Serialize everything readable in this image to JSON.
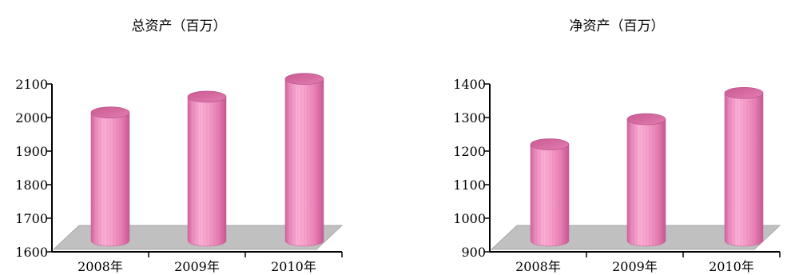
{
  "chart_data": [
    {
      "type": "bar",
      "title": "总资产（百万）",
      "categories": [
        "2008年",
        "2009年",
        "2010年"
      ],
      "values": [
        2015,
        2062,
        2115
      ],
      "ylim": [
        1600,
        2100
      ],
      "yticks": [
        1600,
        1700,
        1800,
        1900,
        2000,
        2100
      ],
      "bar_shape": "cylinder",
      "bar_color": "#f49ac7",
      "floor_color": "#c0c0c0",
      "grid": false,
      "legend": "none"
    },
    {
      "type": "bar",
      "title": "净资产（百万）",
      "categories": [
        "2008年",
        "2009年",
        "2010年"
      ],
      "values": [
        1220,
        1295,
        1373
      ],
      "ylim": [
        900,
        1400
      ],
      "yticks": [
        900,
        1000,
        1100,
        1200,
        1300,
        1400
      ],
      "bar_shape": "cylinder",
      "bar_color": "#f49ac7",
      "floor_color": "#c0c0c0",
      "grid": false,
      "legend": "none"
    }
  ]
}
